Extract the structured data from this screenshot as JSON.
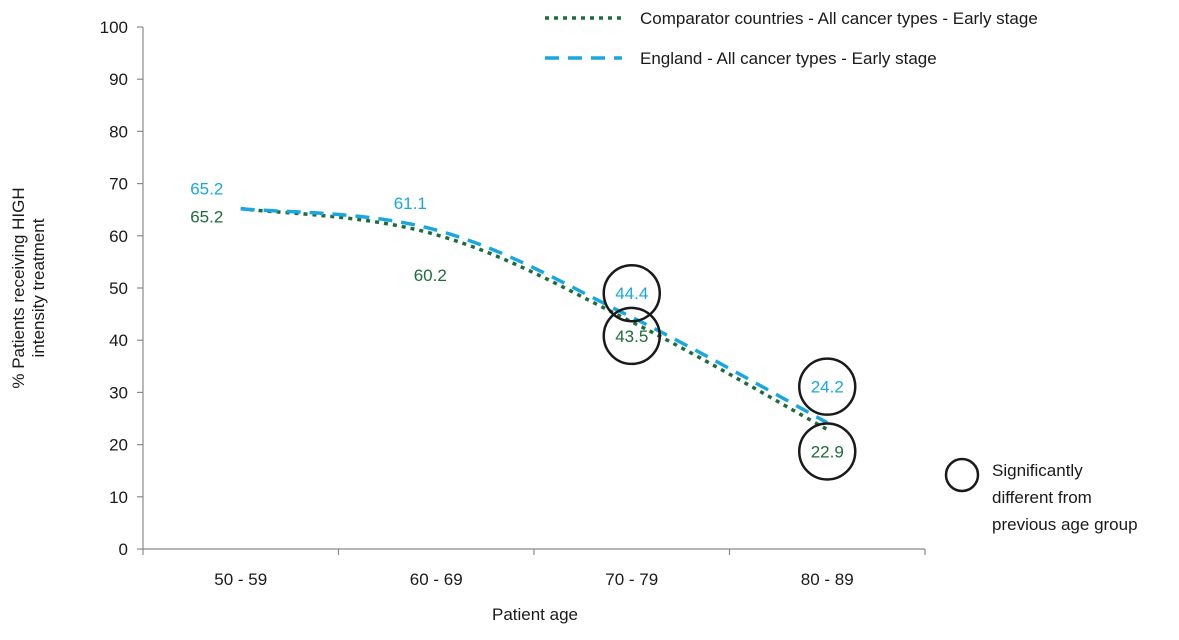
{
  "chart_data": {
    "type": "line",
    "categories": [
      "50 - 59",
      "60 - 69",
      "70 - 79",
      "80 - 89"
    ],
    "series": [
      {
        "name": "Comparator countries - All cancer types - Early stage",
        "values": [
          65.2,
          60.2,
          43.5,
          22.9
        ],
        "labels": [
          "65.2",
          "60.2",
          "43.5",
          "22.9"
        ],
        "color": "#1e6b3c",
        "style": "dotted"
      },
      {
        "name": "England - All cancer types - Early stage",
        "values": [
          65.2,
          61.1,
          44.4,
          24.2
        ],
        "labels": [
          "65.2",
          "61.1",
          "44.4",
          "24.2"
        ],
        "color": "#1aa7e0",
        "style": "dashed"
      }
    ],
    "xlabel": "Patient age",
    "ylabel_lines": [
      "% Patients receiving HIGH",
      "intensity treatment"
    ],
    "ylim": [
      0,
      100
    ],
    "yticks": [
      "0",
      "10",
      "20",
      "30",
      "40",
      "50",
      "60",
      "70",
      "80",
      "90",
      "100"
    ],
    "significant_markers": [
      {
        "series": 0,
        "category": 2
      },
      {
        "series": 1,
        "category": 2
      },
      {
        "series": 0,
        "category": 3
      },
      {
        "series": 1,
        "category": 3
      }
    ],
    "annotation_legend": {
      "lines": [
        "Significantly",
        "different from",
        "previous age group"
      ]
    },
    "legend_position": "top-right"
  }
}
